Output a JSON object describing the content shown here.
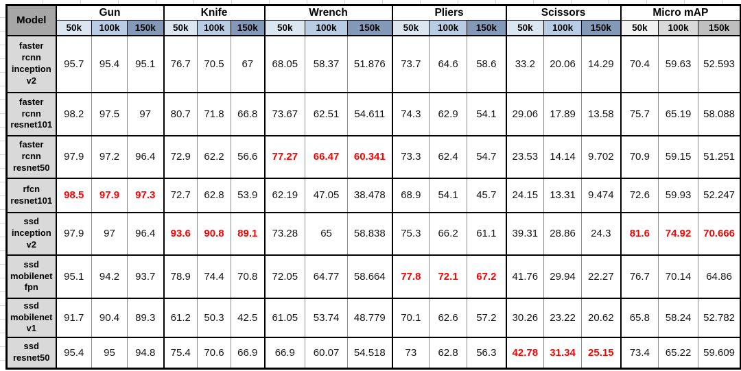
{
  "chart_data": {
    "type": "table",
    "corner_label": "Model",
    "column_groups": [
      {
        "label": "Gun",
        "shade": "blue"
      },
      {
        "label": "Knife",
        "shade": "blue"
      },
      {
        "label": "Wrench",
        "shade": "blue"
      },
      {
        "label": "Pliers",
        "shade": "blue"
      },
      {
        "label": "Scissors",
        "shade": "blue"
      },
      {
        "label": "Micro mAP",
        "shade": "gray"
      }
    ],
    "sub_columns": [
      "50k",
      "100k",
      "150k"
    ],
    "rows": [
      {
        "model": "faster rcnn inception v2",
        "values": [
          "95.7",
          "95.4",
          "95.1",
          "76.7",
          "70.5",
          "67",
          "68.05",
          "58.37",
          "51.876",
          "73.7",
          "64.6",
          "58.6",
          "33.2",
          "20.06",
          "14.29",
          "70.4",
          "59.63",
          "52.593"
        ],
        "red_cells": []
      },
      {
        "model": "faster rcnn resnet101",
        "values": [
          "98.2",
          "97.5",
          "97",
          "80.7",
          "71.8",
          "66.8",
          "73.67",
          "62.51",
          "54.611",
          "74.3",
          "62.9",
          "54.1",
          "29.06",
          "17.89",
          "13.58",
          "75.7",
          "65.19",
          "58.088"
        ],
        "red_cells": []
      },
      {
        "model": "faster rcnn resnet50",
        "values": [
          "97.9",
          "97.2",
          "96.4",
          "72.9",
          "62.2",
          "56.6",
          "77.27",
          "66.47",
          "60.341",
          "73.3",
          "62.4",
          "54.7",
          "23.53",
          "14.14",
          "9.702",
          "70.9",
          "59.15",
          "51.251"
        ],
        "red_cells": [
          6,
          7,
          8
        ]
      },
      {
        "model": "rfcn resnet101",
        "values": [
          "98.5",
          "97.9",
          "97.3",
          "72.7",
          "62.8",
          "53.9",
          "62.19",
          "47.05",
          "38.478",
          "68.9",
          "54.1",
          "45.7",
          "24.15",
          "13.31",
          "9.474",
          "72.6",
          "59.93",
          "52.247"
        ],
        "red_cells": [
          0,
          1,
          2
        ]
      },
      {
        "model": "ssd inception v2",
        "values": [
          "97.9",
          "97",
          "96.4",
          "93.6",
          "90.8",
          "89.1",
          "73.28",
          "65",
          "58.838",
          "75.3",
          "66.2",
          "61.1",
          "39.31",
          "28.86",
          "24.3",
          "81.6",
          "74.92",
          "70.666"
        ],
        "red_cells": [
          3,
          4,
          5,
          15,
          16,
          17
        ]
      },
      {
        "model": "ssd mobilenet fpn",
        "values": [
          "95.1",
          "94.2",
          "93.7",
          "78.9",
          "74.4",
          "70.8",
          "72.05",
          "64.77",
          "58.664",
          "77.8",
          "72.1",
          "67.2",
          "41.76",
          "29.94",
          "22.27",
          "76.7",
          "70.14",
          "64.86"
        ],
        "red_cells": [
          9,
          10,
          11
        ]
      },
      {
        "model": "ssd mobilenet v1",
        "values": [
          "91.7",
          "90.4",
          "89.3",
          "61.2",
          "50.3",
          "42.5",
          "61.05",
          "53.74",
          "48.779",
          "70.1",
          "62.6",
          "57.2",
          "30.26",
          "23.22",
          "20.62",
          "65.8",
          "58.24",
          "52.782"
        ],
        "red_cells": []
      },
      {
        "model": "ssd resnet50",
        "values": [
          "95.4",
          "95",
          "94.8",
          "75.4",
          "70.6",
          "66.9",
          "66.9",
          "60.07",
          "54.518",
          "73",
          "62.8",
          "56.3",
          "42.78",
          "31.34",
          "25.15",
          "73.4",
          "65.22",
          "59.609"
        ],
        "red_cells": [
          12,
          13,
          14
        ]
      }
    ]
  },
  "colors": {
    "blue_50k": "#dce6f1",
    "blue_100k": "#b8cce4",
    "blue_150k": "#8499b8",
    "gray_50k": "#f2f2f2",
    "gray_100k": "#d9d9d9",
    "gray_150k": "#bfbfbf",
    "corner_bg": "#a6a6a6",
    "model_bg": "#d9d9d9",
    "highlight_red": "#ff0000"
  }
}
